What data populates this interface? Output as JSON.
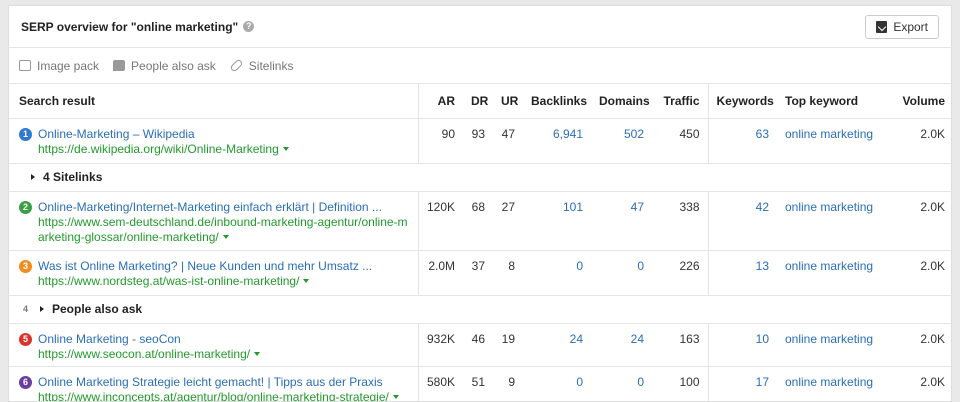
{
  "header": {
    "title": "SERP overview for \"online marketing\"",
    "help_icon": "?",
    "export_label": "Export"
  },
  "filters": [
    {
      "label": "Image pack",
      "icon": "image-icon"
    },
    {
      "label": "People also ask",
      "icon": "chat-icon"
    },
    {
      "label": "Sitelinks",
      "icon": "link-icon"
    }
  ],
  "columns": {
    "search_result": "Search result",
    "ar": "AR",
    "dr": "DR",
    "ur": "UR",
    "backlinks": "Backlinks",
    "domains": "Domains",
    "traffic": "Traffic",
    "keywords": "Keywords",
    "top_keyword": "Top keyword",
    "volume": "Volume"
  },
  "colors": {
    "pos1": "#2f7ad0",
    "pos2": "#3aa043",
    "pos3": "#f08d1e",
    "pos5": "#d8352f",
    "pos6": "#6a3fa0",
    "link": "#2a6eb8",
    "url": "#229a2c"
  },
  "rows": [
    {
      "pos": "1",
      "title": "Online-Marketing – Wikipedia",
      "url": "https://de.wikipedia.org/wiki/Online-Marketing",
      "ar": "90",
      "dr": "93",
      "ur": "47",
      "backlinks": "6,941",
      "domains": "502",
      "traffic": "450",
      "keywords": "63",
      "top_keyword": "online marketing",
      "volume": "2.0K"
    },
    {
      "sitelinks": "4 Sitelinks"
    },
    {
      "pos": "2",
      "title": "Online-Marketing/Internet-Marketing einfach erklärt | Definition ...",
      "url": "https://www.sem-deutschland.de/inbound-marketing-agentur/online-marketing-glossar/online-marketing/",
      "ar": "120K",
      "dr": "68",
      "ur": "27",
      "backlinks": "101",
      "domains": "47",
      "traffic": "338",
      "keywords": "42",
      "top_keyword": "online marketing",
      "volume": "2.0K"
    },
    {
      "pos": "3",
      "title": "Was ist Online Marketing? | Neue Kunden und mehr Umsatz ...",
      "url": "https://www.nordsteg.at/was-ist-online-marketing/",
      "ar": "2.0M",
      "dr": "37",
      "ur": "8",
      "backlinks": "0",
      "domains": "0",
      "traffic": "226",
      "keywords": "13",
      "top_keyword": "online marketing",
      "volume": "2.0K"
    },
    {
      "people_pos": "4",
      "people_label": "People also ask"
    },
    {
      "pos": "5",
      "title": "Online Marketing - seoCon",
      "url": "https://www.seocon.at/online-marketing/",
      "ar": "932K",
      "dr": "46",
      "ur": "19",
      "backlinks": "24",
      "domains": "24",
      "traffic": "163",
      "keywords": "10",
      "top_keyword": "online marketing",
      "volume": "2.0K"
    },
    {
      "pos": "6",
      "title": "Online Marketing Strategie leicht gemacht! | Tipps aus der Praxis",
      "url": "https://www.inconcepts.at/agentur/blog/online-marketing-strategie/",
      "ar": "580K",
      "dr": "51",
      "ur": "9",
      "backlinks": "0",
      "domains": "0",
      "traffic": "100",
      "keywords": "17",
      "top_keyword": "online marketing",
      "volume": "2.0K"
    }
  ]
}
